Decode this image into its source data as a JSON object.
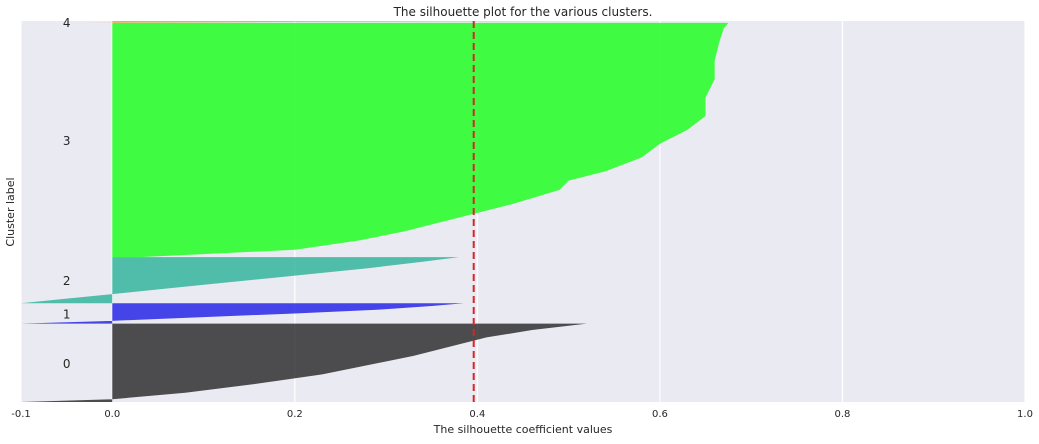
{
  "chart_data": {
    "type": "area",
    "title": "The silhouette plot for the various clusters.",
    "xlabel": "The silhouette coefficient values",
    "ylabel": "Cluster label",
    "xlim": [
      -0.1,
      1.0
    ],
    "ylim": [
      0,
      413
    ],
    "x_ticks": [
      -0.1,
      0.0,
      0.2,
      0.4,
      0.6,
      0.8,
      1.0
    ],
    "x_tick_labels": [
      "-0.1",
      "0.0",
      "0.2",
      "0.4",
      "0.6",
      "0.8",
      "1.0"
    ],
    "grid": true,
    "average_silhouette_score": 0.396,
    "average_line_color": "#d62728",
    "background_color": "#eaeaf2",
    "clusters": [
      {
        "label": "0",
        "color": "#2a2a2a",
        "y_lower": 0,
        "y_upper": 85,
        "profile": [
          [
            0,
            -0.1
          ],
          [
            3,
            0
          ],
          [
            10,
            0.08
          ],
          [
            20,
            0.16
          ],
          [
            30,
            0.23
          ],
          [
            40,
            0.28
          ],
          [
            50,
            0.33
          ],
          [
            60,
            0.37
          ],
          [
            70,
            0.41
          ],
          [
            78,
            0.46
          ],
          [
            85,
            0.52
          ]
        ]
      },
      {
        "label": "1",
        "color": "#2020e6",
        "y_lower": 85,
        "y_upper": 107,
        "profile": [
          [
            85,
            -0.1
          ],
          [
            88,
            0
          ],
          [
            92,
            0.1
          ],
          [
            96,
            0.2
          ],
          [
            100,
            0.29
          ],
          [
            104,
            0.35
          ],
          [
            107,
            0.385
          ]
        ]
      },
      {
        "label": "2",
        "color": "#2db39a",
        "y_lower": 107,
        "y_upper": 157,
        "profile": [
          [
            107,
            -0.1
          ],
          [
            112,
            -0.05
          ],
          [
            117,
            0
          ],
          [
            125,
            0.08
          ],
          [
            135,
            0.18
          ],
          [
            145,
            0.28
          ],
          [
            152,
            0.34
          ],
          [
            157,
            0.38
          ]
        ]
      },
      {
        "label": "3",
        "color": "#1aff1a",
        "y_lower": 157,
        "y_upper": 411,
        "profile": [
          [
            157,
            0.03
          ],
          [
            165,
            0.2
          ],
          [
            175,
            0.27
          ],
          [
            185,
            0.32
          ],
          [
            200,
            0.38
          ],
          [
            215,
            0.44
          ],
          [
            230,
            0.49
          ],
          [
            240,
            0.5
          ],
          [
            250,
            0.54
          ],
          [
            265,
            0.58
          ],
          [
            280,
            0.6
          ],
          [
            295,
            0.63
          ],
          [
            310,
            0.65
          ],
          [
            330,
            0.65
          ],
          [
            350,
            0.66
          ],
          [
            370,
            0.66
          ],
          [
            390,
            0.665
          ],
          [
            405,
            0.67
          ],
          [
            411,
            0.675
          ]
        ]
      },
      {
        "label": "4",
        "color": "#f0a030",
        "y_lower": 411,
        "y_upper": 413,
        "profile": [
          [
            411,
            -0.03
          ],
          [
            412,
            0.2
          ],
          [
            413,
            0.545
          ]
        ]
      }
    ]
  }
}
